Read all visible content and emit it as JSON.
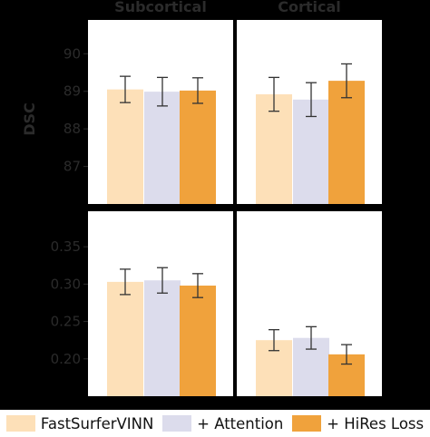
{
  "chart_data": {
    "type": "bar",
    "column_titles": [
      "Subcortical",
      "Cortical"
    ],
    "series": [
      {
        "name": "FastSurferVINN",
        "color": "#fde0b8"
      },
      {
        "name": "+ Attention",
        "color": "#dcdcec"
      },
      {
        "name": "+ HiRes Loss",
        "color": "#f0a23c"
      }
    ],
    "rows": [
      {
        "ylabel": "DSC",
        "ylim": [
          86.0,
          90.9
        ],
        "ticks": [
          87,
          88,
          89,
          90
        ],
        "tick_labels": [
          "87",
          "88",
          "89",
          "90"
        ],
        "panels": [
          {
            "column": "Subcortical",
            "values": [
              89.05,
              88.99,
              89.02
            ],
            "errors": [
              0.35,
              0.38,
              0.34
            ]
          },
          {
            "column": "Cortical",
            "values": [
              88.92,
              88.78,
              89.28
            ],
            "errors": [
              0.45,
              0.45,
              0.45
            ]
          }
        ]
      },
      {
        "ylabel": "",
        "ylim": [
          0.15,
          0.3975
        ],
        "ticks": [
          0.2,
          0.25,
          0.3,
          0.35
        ],
        "tick_labels": [
          "0.20",
          "0.25",
          "0.30",
          "0.35"
        ],
        "panels": [
          {
            "column": "Subcortical",
            "values": [
              0.303,
              0.305,
              0.298
            ],
            "errors": [
              0.017,
              0.017,
              0.016
            ]
          },
          {
            "column": "Cortical",
            "values": [
              0.225,
              0.228,
              0.206
            ],
            "errors": [
              0.014,
              0.015,
              0.013
            ]
          }
        ]
      }
    ],
    "legend_position": "bottom",
    "grid": false
  }
}
